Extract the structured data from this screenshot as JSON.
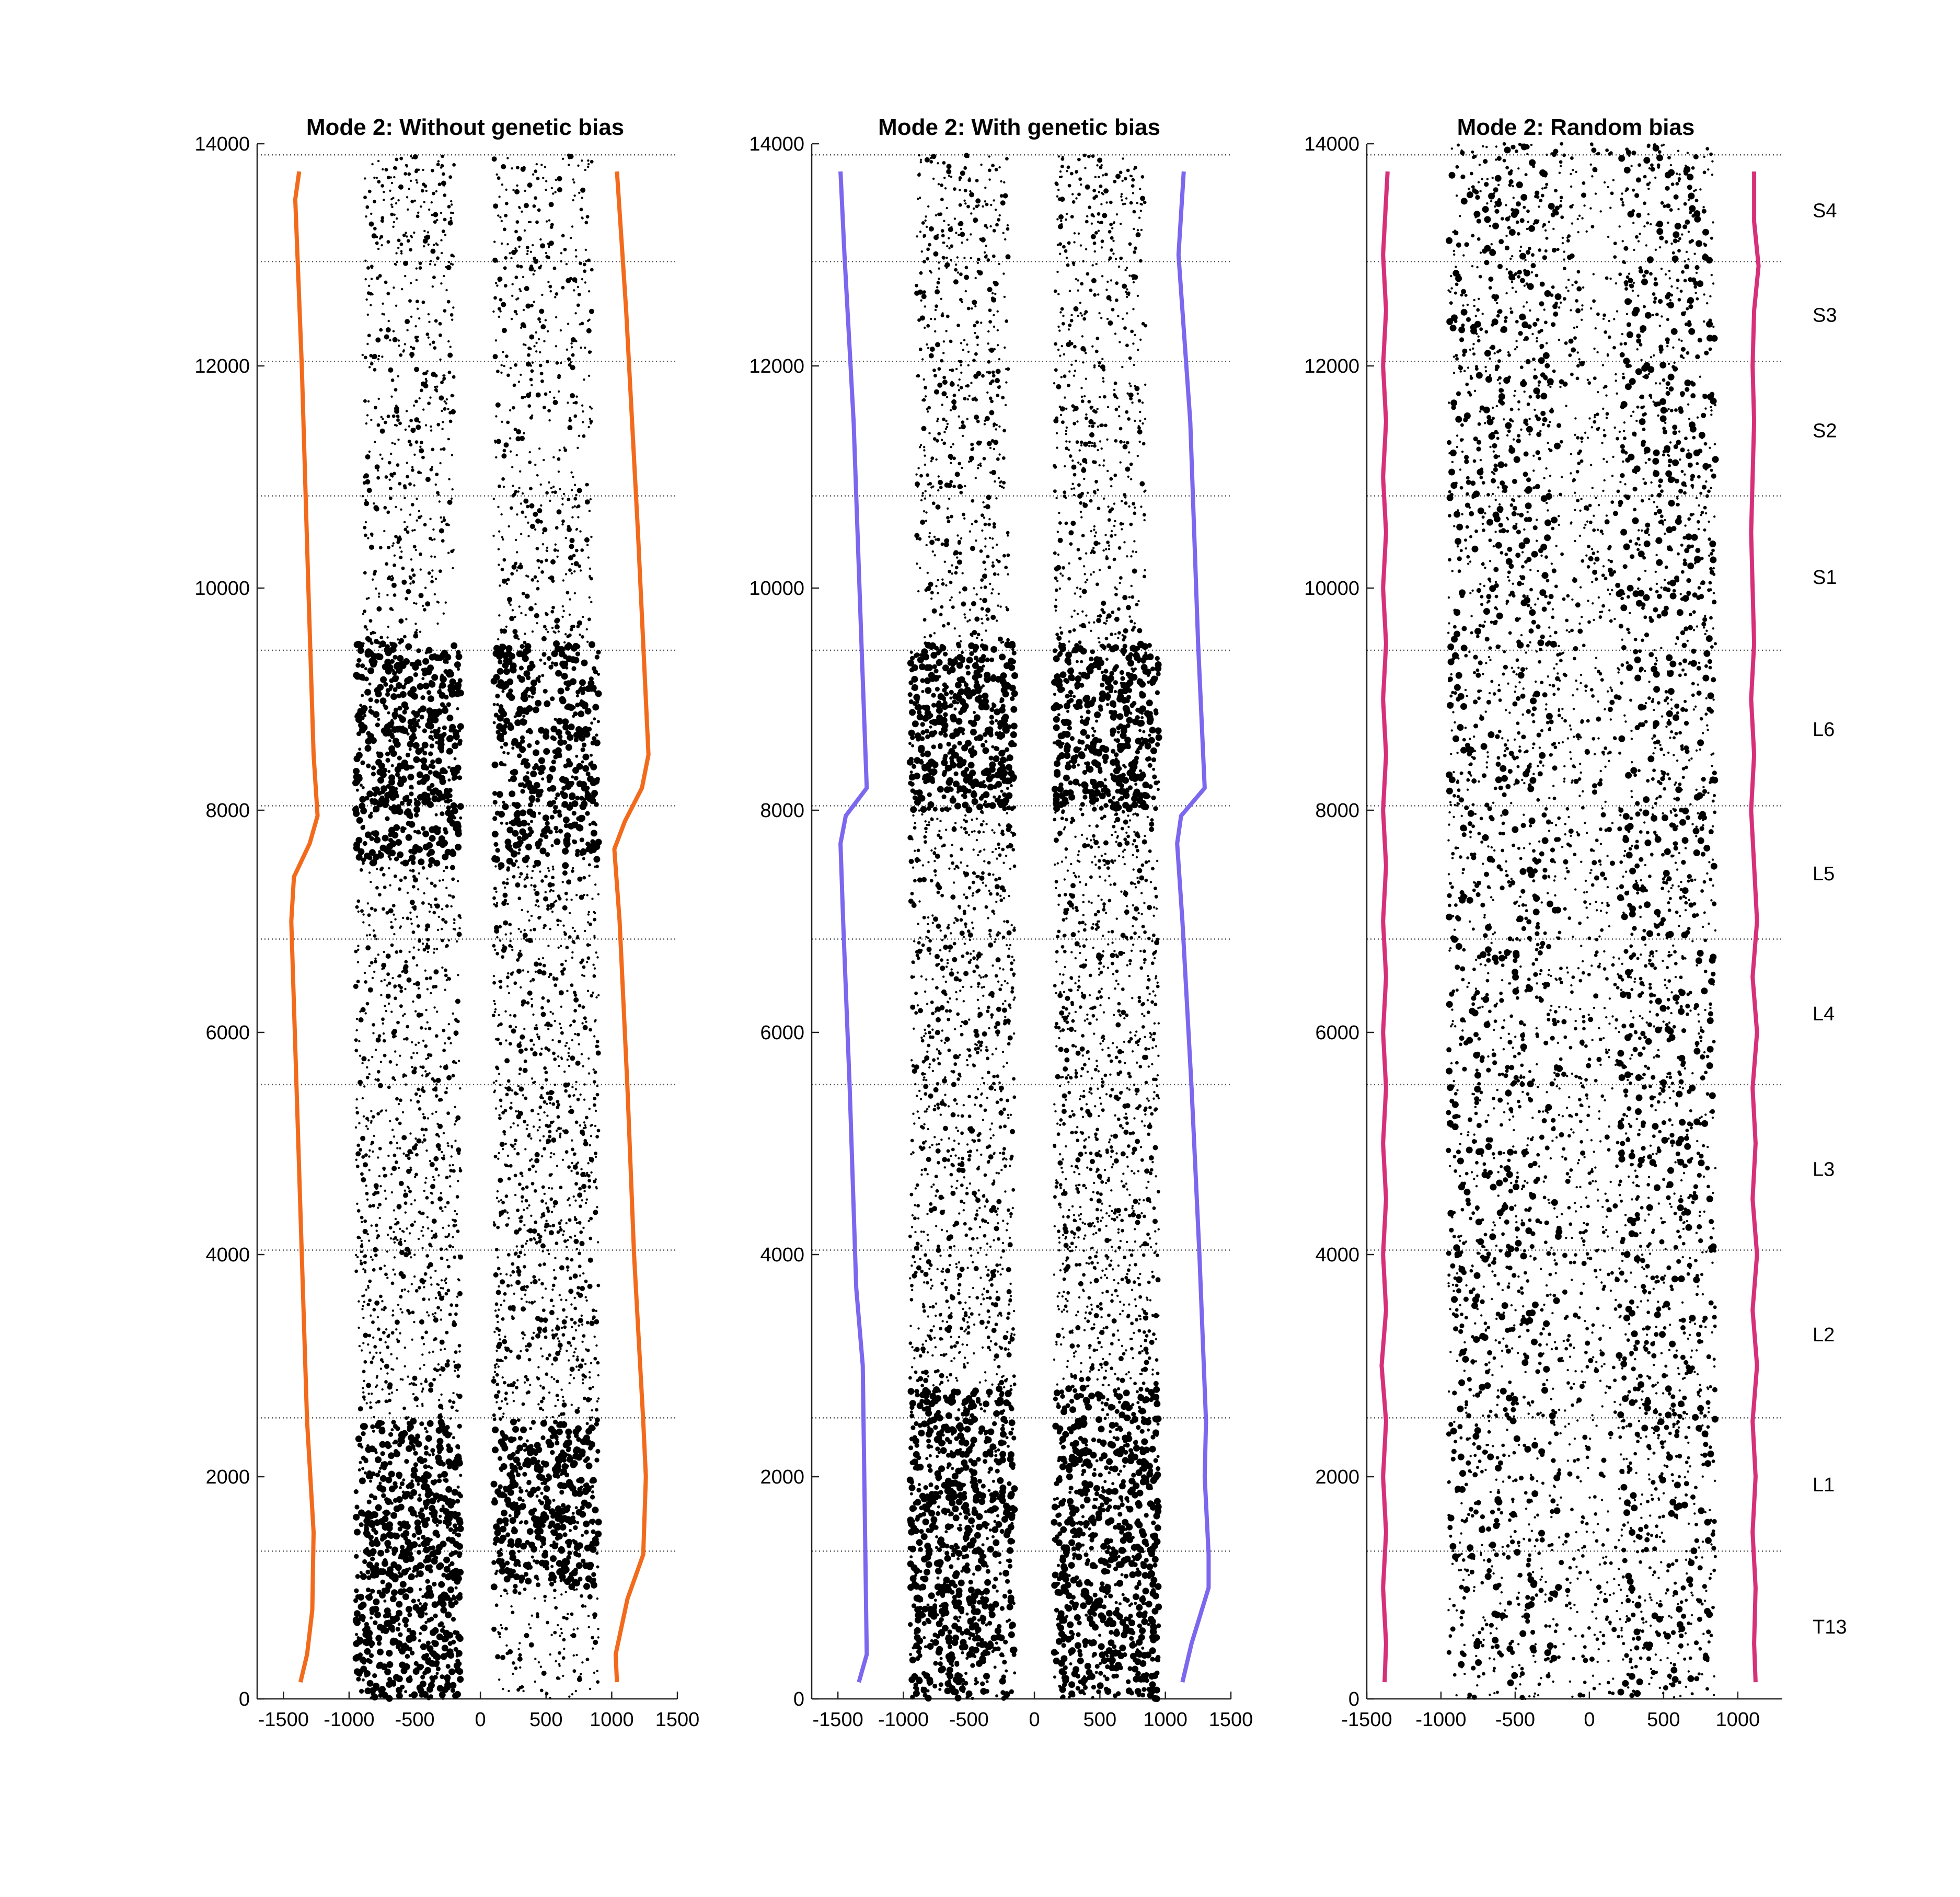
{
  "chart_data": [
    {
      "type": "scatter",
      "title": "Mode 2: Without genetic bias",
      "xlim": [
        -1700,
        1500
      ],
      "ylim": [
        0,
        14000
      ],
      "xticks": [
        -1500,
        -1000,
        -500,
        0,
        500,
        1000,
        1500
      ],
      "yticks": [
        0,
        2000,
        4000,
        6000,
        8000,
        10000,
        12000,
        14000
      ],
      "boundary_color": "#F26B1D",
      "left_boundary": [
        [
          -1370,
          150
        ],
        [
          -1320,
          400
        ],
        [
          -1280,
          800
        ],
        [
          -1270,
          1500
        ],
        [
          -1320,
          2500
        ],
        [
          -1360,
          4000
        ],
        [
          -1400,
          5500
        ],
        [
          -1440,
          7000
        ],
        [
          -1420,
          7400
        ],
        [
          -1300,
          7700
        ],
        [
          -1240,
          7950
        ],
        [
          -1270,
          8500
        ],
        [
          -1310,
          10000
        ],
        [
          -1360,
          12000
        ],
        [
          -1410,
          13500
        ],
        [
          -1380,
          13750
        ]
      ],
      "right_boundary": [
        [
          1040,
          150
        ],
        [
          1030,
          400
        ],
        [
          1120,
          900
        ],
        [
          1240,
          1300
        ],
        [
          1260,
          2000
        ],
        [
          1240,
          2500
        ],
        [
          1170,
          4000
        ],
        [
          1120,
          5500
        ],
        [
          1060,
          7000
        ],
        [
          1020,
          7650
        ],
        [
          1100,
          7900
        ],
        [
          1230,
          8200
        ],
        [
          1280,
          8500
        ],
        [
          1200,
          10500
        ],
        [
          1110,
          12500
        ],
        [
          1040,
          13750
        ]
      ],
      "scatter_density": [
        {
          "y": [
            0,
            1000
          ],
          "columns": [
            {
              "x": [
                -950,
                -150
              ],
              "n": 320,
              "big": true
            },
            {
              "x": [
                100,
                900
              ],
              "n": 120,
              "big": false
            }
          ]
        },
        {
          "y": [
            1000,
            2500
          ],
          "columns": [
            {
              "x": [
                -950,
                -150
              ],
              "n": 480,
              "big": true
            },
            {
              "x": [
                100,
                900
              ],
              "n": 480,
              "big": true
            }
          ]
        },
        {
          "y": [
            2500,
            7500
          ],
          "columns": [
            {
              "x": [
                -950,
                -150
              ],
              "n": 900,
              "big": false
            },
            {
              "x": [
                100,
                900
              ],
              "n": 1000,
              "big": false
            }
          ]
        },
        {
          "y": [
            7500,
            9500
          ],
          "columns": [
            {
              "x": [
                -950,
                -150
              ],
              "n": 620,
              "big": true
            },
            {
              "x": [
                100,
                900
              ],
              "n": 500,
              "big": true
            }
          ]
        },
        {
          "y": [
            9500,
            13900
          ],
          "columns": [
            {
              "x": [
                -900,
                -200
              ],
              "n": 560,
              "big": false
            },
            {
              "x": [
                100,
                850
              ],
              "n": 560,
              "big": false
            }
          ]
        }
      ]
    },
    {
      "type": "scatter",
      "title": "Mode 2: With genetic bias",
      "xlim": [
        -1700,
        1500
      ],
      "ylim": [
        0,
        14000
      ],
      "xticks": [
        -1500,
        -1000,
        -500,
        0,
        500,
        1000,
        1500
      ],
      "yticks": [
        0,
        2000,
        4000,
        6000,
        8000,
        10000,
        12000,
        14000
      ],
      "boundary_color": "#7B68EE",
      "left_boundary": [
        [
          -1340,
          150
        ],
        [
          -1280,
          400
        ],
        [
          -1310,
          3000
        ],
        [
          -1360,
          3700
        ],
        [
          -1410,
          5500
        ],
        [
          -1460,
          7000
        ],
        [
          -1480,
          7700
        ],
        [
          -1440,
          7950
        ],
        [
          -1280,
          8200
        ],
        [
          -1320,
          9500
        ],
        [
          -1380,
          11500
        ],
        [
          -1450,
          13000
        ],
        [
          -1480,
          13750
        ]
      ],
      "right_boundary": [
        [
          1130,
          150
        ],
        [
          1200,
          500
        ],
        [
          1330,
          1000
        ],
        [
          1330,
          1300
        ],
        [
          1300,
          2000
        ],
        [
          1310,
          2500
        ],
        [
          1260,
          4000
        ],
        [
          1200,
          5500
        ],
        [
          1130,
          7000
        ],
        [
          1090,
          7700
        ],
        [
          1120,
          7950
        ],
        [
          1300,
          8200
        ],
        [
          1250,
          9500
        ],
        [
          1190,
          11500
        ],
        [
          1100,
          13000
        ],
        [
          1140,
          13750
        ]
      ],
      "scatter_density": [
        {
          "y": [
            0,
            2800
          ],
          "columns": [
            {
              "x": [
                -950,
                -150
              ],
              "n": 820,
              "big": true
            },
            {
              "x": [
                150,
                950
              ],
              "n": 820,
              "big": true
            }
          ]
        },
        {
          "y": [
            2800,
            8000
          ],
          "columns": [
            {
              "x": [
                -950,
                -150
              ],
              "n": 1000,
              "big": false
            },
            {
              "x": [
                150,
                950
              ],
              "n": 1050,
              "big": false
            }
          ]
        },
        {
          "y": [
            8000,
            9500
          ],
          "columns": [
            {
              "x": [
                -950,
                -150
              ],
              "n": 480,
              "big": true
            },
            {
              "x": [
                150,
                950
              ],
              "n": 480,
              "big": true
            }
          ]
        },
        {
          "y": [
            9500,
            13900
          ],
          "columns": [
            {
              "x": [
                -900,
                -200
              ],
              "n": 600,
              "big": false
            },
            {
              "x": [
                150,
                850
              ],
              "n": 600,
              "big": false
            }
          ]
        }
      ]
    },
    {
      "type": "scatter",
      "title": "Mode 2: Random bias",
      "xlim": [
        -1500,
        1300
      ],
      "ylim": [
        0,
        14000
      ],
      "xticks": [
        -1500,
        -1000,
        -500,
        0,
        500,
        1000
      ],
      "yticks": [
        0,
        2000,
        4000,
        6000,
        8000,
        10000,
        12000,
        14000
      ],
      "boundary_color": "#D6307A",
      "left_boundary": [
        [
          -1380,
          150
        ],
        [
          -1370,
          500
        ],
        [
          -1390,
          1000
        ],
        [
          -1370,
          1500
        ],
        [
          -1390,
          2000
        ],
        [
          -1370,
          2500
        ],
        [
          -1400,
          3000
        ],
        [
          -1370,
          3500
        ],
        [
          -1390,
          4000
        ],
        [
          -1370,
          4500
        ],
        [
          -1390,
          5000
        ],
        [
          -1370,
          5500
        ],
        [
          -1390,
          6000
        ],
        [
          -1370,
          6500
        ],
        [
          -1390,
          7000
        ],
        [
          -1370,
          7500
        ],
        [
          -1390,
          8000
        ],
        [
          -1370,
          8500
        ],
        [
          -1390,
          9000
        ],
        [
          -1370,
          9500
        ],
        [
          -1390,
          10000
        ],
        [
          -1370,
          10500
        ],
        [
          -1390,
          11000
        ],
        [
          -1370,
          11500
        ],
        [
          -1390,
          12000
        ],
        [
          -1370,
          12500
        ],
        [
          -1390,
          13000
        ],
        [
          -1370,
          13500
        ],
        [
          -1360,
          13750
        ]
      ],
      "right_boundary": [
        [
          1120,
          150
        ],
        [
          1110,
          500
        ],
        [
          1120,
          1000
        ],
        [
          1100,
          1500
        ],
        [
          1120,
          2000
        ],
        [
          1100,
          2500
        ],
        [
          1130,
          3000
        ],
        [
          1100,
          3500
        ],
        [
          1130,
          4000
        ],
        [
          1100,
          4500
        ],
        [
          1120,
          5000
        ],
        [
          1100,
          5500
        ],
        [
          1130,
          6000
        ],
        [
          1100,
          6500
        ],
        [
          1130,
          7000
        ],
        [
          1110,
          7500
        ],
        [
          1090,
          8000
        ],
        [
          1110,
          8500
        ],
        [
          1090,
          9000
        ],
        [
          1110,
          9500
        ],
        [
          1100,
          10000
        ],
        [
          1090,
          10500
        ],
        [
          1100,
          11000
        ],
        [
          1110,
          11500
        ],
        [
          1100,
          12000
        ],
        [
          1110,
          12500
        ],
        [
          1140,
          12900
        ],
        [
          1110,
          13300
        ],
        [
          1110,
          13750
        ]
      ],
      "scatter_density": [
        {
          "y": [
            0,
            14000
          ],
          "columns": [
            {
              "x": [
                -950,
                850
              ],
              "n": 3600,
              "big": false
            }
          ]
        },
        {
          "y": [
            0,
            14000
          ],
          "columns": [
            {
              "x": [
                -950,
                -200
              ],
              "n": 700,
              "big": true
            },
            {
              "x": [
                200,
                850
              ],
              "n": 700,
              "big": true
            }
          ]
        }
      ]
    }
  ],
  "segments": {
    "boundaries": [
      1330,
      2530,
      4040,
      5530,
      6840,
      8040,
      9440,
      10830,
      12040,
      12940,
      13900
    ],
    "labels": [
      {
        "name": "T13",
        "y": 650
      },
      {
        "name": "L1",
        "y": 1930
      },
      {
        "name": "L2",
        "y": 3280
      },
      {
        "name": "L3",
        "y": 4770
      },
      {
        "name": "L4",
        "y": 6170
      },
      {
        "name": "L5",
        "y": 7430
      },
      {
        "name": "L6",
        "y": 8730
      },
      {
        "name": "S1",
        "y": 10100
      },
      {
        "name": "S2",
        "y": 11420
      },
      {
        "name": "S3",
        "y": 12460
      },
      {
        "name": "S4",
        "y": 13400
      }
    ]
  }
}
